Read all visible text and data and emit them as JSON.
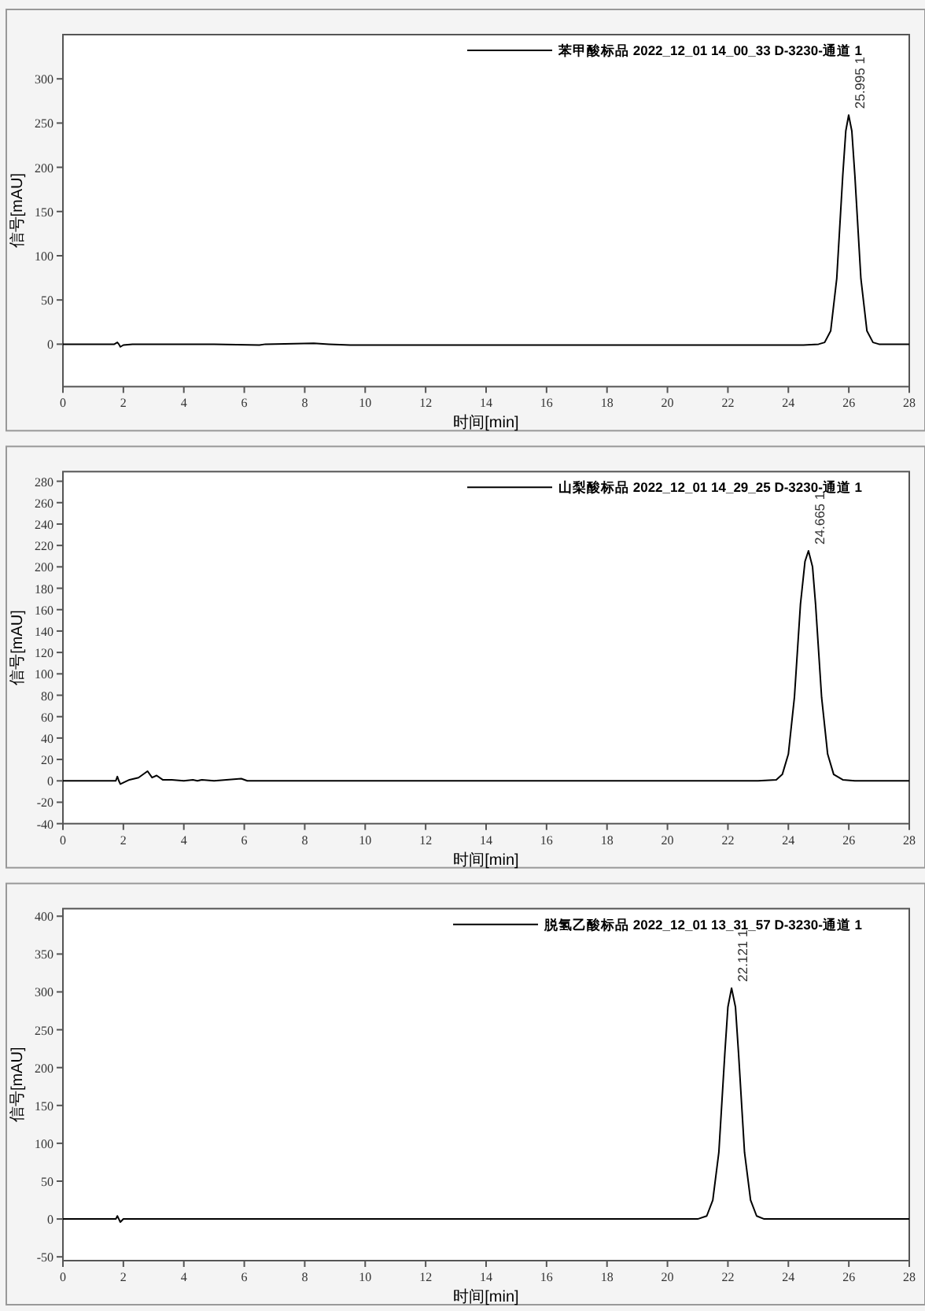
{
  "chart_data": [
    {
      "type": "line",
      "xlabel": "时间[min]",
      "ylabel": "信号[mAU]",
      "xlim": [
        0,
        28
      ],
      "ylim": [
        -48,
        350
      ],
      "xticks": [
        0,
        2,
        4,
        6,
        8,
        10,
        12,
        14,
        16,
        18,
        20,
        22,
        24,
        26,
        28
      ],
      "yticks": [
        0,
        50,
        100,
        150,
        200,
        250,
        300
      ],
      "grid": false,
      "legend": "top right",
      "marker": "none",
      "line_style": "solid",
      "series": [
        {
          "name": "苯甲酸标品 2022_12_01 14_00_33 D-3230-通道 1",
          "color": "#000000",
          "x": [
            0,
            1.7,
            1.8,
            1.85,
            1.9,
            2.0,
            2.3,
            5.0,
            6.5,
            6.7,
            8.3,
            8.8,
            9.5,
            24.5,
            25.0,
            25.2,
            25.4,
            25.6,
            25.8,
            25.9,
            25.995,
            26.1,
            26.2,
            26.4,
            26.6,
            26.8,
            27.0,
            27.3,
            28
          ],
          "values": [
            0,
            0,
            2,
            0,
            -3,
            -1,
            0,
            0,
            -1,
            0,
            1,
            0,
            -1,
            -1,
            0,
            2,
            15,
            74,
            191,
            241,
            259,
            241,
            191,
            74,
            15,
            2,
            0,
            0,
            0
          ]
        }
      ],
      "annotations": [
        {
          "text": "25.995  1",
          "x": 25.995,
          "y": 259
        }
      ]
    },
    {
      "type": "line",
      "xlabel": "时间[min]",
      "ylabel": "信号[mAU]",
      "xlim": [
        0,
        28
      ],
      "ylim": [
        -40,
        289
      ],
      "xticks": [
        0,
        2,
        4,
        6,
        8,
        10,
        12,
        14,
        16,
        18,
        20,
        22,
        24,
        26,
        28
      ],
      "yticks": [
        -40,
        -20,
        0,
        20,
        40,
        60,
        80,
        100,
        120,
        140,
        160,
        180,
        200,
        220,
        240,
        260,
        280
      ],
      "grid": false,
      "legend": "top right",
      "marker": "none",
      "line_style": "solid",
      "series": [
        {
          "name": "山梨酸标品 2022_12_01 14_29_25 D-3230-通道 1",
          "color": "#000000",
          "x": [
            0,
            1.75,
            1.8,
            1.85,
            1.9,
            2.2,
            2.5,
            2.8,
            2.95,
            3.1,
            3.3,
            3.6,
            4.0,
            4.3,
            4.45,
            4.6,
            5.0,
            5.9,
            6.1,
            23.0,
            23.6,
            23.8,
            24.0,
            24.2,
            24.4,
            24.55,
            24.665,
            24.8,
            24.9,
            25.1,
            25.3,
            25.5,
            25.8,
            26.2,
            28
          ],
          "values": [
            0,
            0,
            4,
            0,
            -3,
            1,
            3,
            9,
            3,
            5,
            1,
            1,
            0,
            1,
            0,
            1,
            0,
            2,
            0,
            0,
            1,
            6,
            25,
            78,
            165,
            205,
            215,
            200,
            165,
            78,
            25,
            6,
            1,
            0,
            0
          ]
        }
      ],
      "annotations": [
        {
          "text": "24.665  1",
          "x": 24.665,
          "y": 215
        }
      ]
    },
    {
      "type": "line",
      "xlabel": "时间[min]",
      "ylabel": "信号[mAU]",
      "xlim": [
        0,
        28
      ],
      "ylim": [
        -55,
        410
      ],
      "xticks": [
        0,
        2,
        4,
        6,
        8,
        10,
        12,
        14,
        16,
        18,
        20,
        22,
        24,
        26,
        28
      ],
      "yticks": [
        -50,
        0,
        50,
        100,
        150,
        200,
        250,
        300,
        350,
        400
      ],
      "grid": false,
      "legend": "top right",
      "marker": "none",
      "line_style": "solid",
      "series": [
        {
          "name": "脱氢乙酸标品 2022_12_01 13_31_57 D-3230-通道 1",
          "color": "#000000",
          "x": [
            0,
            1.75,
            1.8,
            1.85,
            1.9,
            2.0,
            21.0,
            21.3,
            21.5,
            21.7,
            21.9,
            22.0,
            22.121,
            22.25,
            22.35,
            22.55,
            22.75,
            22.95,
            23.2,
            28
          ],
          "values": [
            0,
            0,
            4,
            0,
            -4,
            0,
            0,
            4,
            25,
            88,
            220,
            280,
            305,
            280,
            220,
            88,
            25,
            4,
            0,
            0
          ]
        }
      ],
      "annotations": [
        {
          "text": "22.121  1",
          "x": 22.121,
          "y": 305
        }
      ]
    }
  ]
}
